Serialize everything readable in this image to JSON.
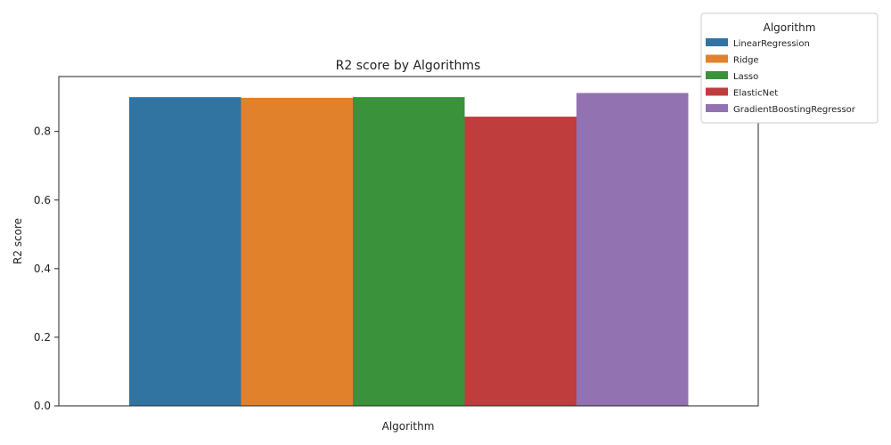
{
  "chart_data": {
    "type": "bar",
    "title": "R2 score by Algorithms",
    "xlabel": "Algorithm",
    "ylabel": "R2 score",
    "ylim": [
      0,
      0.96
    ],
    "yticks": [
      "0.0",
      "0.2",
      "0.4",
      "0.6",
      "0.8"
    ],
    "ytick_values": [
      0,
      0.2,
      0.4,
      0.6,
      0.8
    ],
    "grid": false,
    "legend": {
      "title": "Algorithm",
      "placement": "top-right"
    },
    "series": [
      {
        "name": "LinearRegression",
        "value": 0.9,
        "color": "#3274a1"
      },
      {
        "name": "Ridge",
        "value": 0.898,
        "color": "#e1812c"
      },
      {
        "name": "Lasso",
        "value": 0.9,
        "color": "#3a923a"
      },
      {
        "name": "ElasticNet",
        "value": 0.843,
        "color": "#c03d3e"
      },
      {
        "name": "GradientBoostingRegressor",
        "value": 0.912,
        "color": "#9372b2"
      }
    ]
  }
}
